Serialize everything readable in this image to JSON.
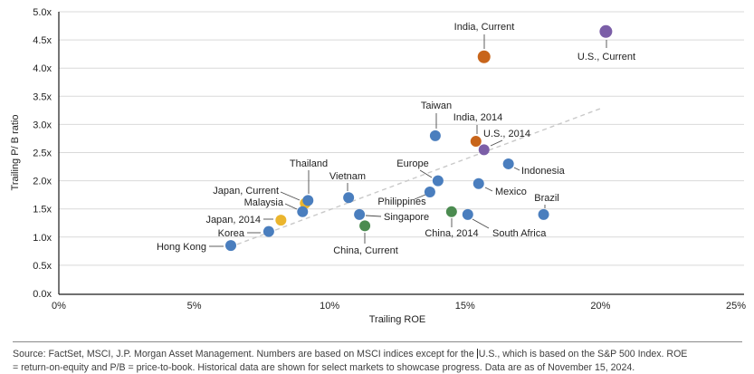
{
  "chart_data": {
    "type": "scatter",
    "title": "",
    "xlabel": "Trailing ROE",
    "ylabel": "Trailing P/ B ratio",
    "xlim": [
      0,
      25
    ],
    "ylim": [
      0,
      5
    ],
    "x_ticks": [
      {
        "label": "0%",
        "value": 0
      },
      {
        "label": "5%",
        "value": 5
      },
      {
        "label": "10%",
        "value": 10
      },
      {
        "label": "15%",
        "value": 15
      },
      {
        "label": "20%",
        "value": 20
      },
      {
        "label": "25%",
        "value": 25
      }
    ],
    "y_ticks": [
      {
        "label": "0.0x",
        "value": 0
      },
      {
        "label": "0.5x",
        "value": 0.5
      },
      {
        "label": "1.0x",
        "value": 1
      },
      {
        "label": "1.5x",
        "value": 1.5
      },
      {
        "label": "2.0x",
        "value": 2
      },
      {
        "label": "2.5x",
        "value": 2.5
      },
      {
        "label": "3.0x",
        "value": 3
      },
      {
        "label": "3.5x",
        "value": 3.5
      },
      {
        "label": "4.0x",
        "value": 4
      },
      {
        "label": "4.5x",
        "value": 4.5
      },
      {
        "label": "5.0x",
        "value": 5
      }
    ],
    "grid": true,
    "legend": "none",
    "colors": {
      "market": "#4A7EBE",
      "india": "#C8651B",
      "us": "#7B5EA7",
      "japan": "#EBB52D",
      "china": "#4B8B50",
      "gridline": "#D9D9D9",
      "spine": "#1a1a1a",
      "trendline": "#C9C9C9",
      "leader": "#4d4d4d",
      "text": "#1f1f1f"
    },
    "trendline": {
      "x1": 6.3,
      "y1": 0.82,
      "x2": 20.1,
      "y2": 3.3,
      "style": "dashed"
    },
    "points": [
      {
        "label": "Hong Kong",
        "series": "market",
        "roe": 6.35,
        "pb": 0.85,
        "r": 6,
        "anchor": "end",
        "lp": [
          228,
          276
        ],
        "leader": [
          231,
          272,
          247,
          272
        ]
      },
      {
        "label": "Korea",
        "series": "market",
        "roe": 7.75,
        "pb": 1.1,
        "r": 6,
        "anchor": "end",
        "lp": [
          270,
          261
        ],
        "leader": [
          273,
          257,
          288,
          257
        ]
      },
      {
        "label": "Japan, 2014",
        "series": "japan",
        "roe": 8.2,
        "pb": 1.3,
        "r": 6,
        "anchor": "end",
        "lp": [
          288,
          246
        ],
        "leader": [
          291,
          242,
          302,
          242
        ]
      },
      {
        "label": "Japan, Current",
        "series": "japan",
        "roe": 9.1,
        "pb": 1.6,
        "r": 6,
        "anchor": "end",
        "lp": [
          308,
          214
        ],
        "leader": [
          310,
          212,
          331,
          221
        ]
      },
      {
        "label": "Malaysia",
        "series": "market",
        "roe": 9.0,
        "pb": 1.45,
        "r": 6,
        "anchor": "end",
        "lp": [
          313,
          227
        ],
        "leader": [
          315,
          225,
          328,
          231
        ]
      },
      {
        "label": "Thailand",
        "series": "market",
        "roe": 9.2,
        "pb": 1.65,
        "r": 6,
        "anchor": "middle",
        "lp": [
          341,
          184
        ],
        "leader": [
          341,
          188,
          341,
          214
        ]
      },
      {
        "label": "Vietnam",
        "series": "market",
        "roe": 10.7,
        "pb": 1.7,
        "r": 6,
        "anchor": "middle",
        "lp": [
          384,
          198
        ],
        "leader": [
          384,
          202,
          384,
          211
        ]
      },
      {
        "label": "Singapore",
        "series": "market",
        "roe": 11.1,
        "pb": 1.4,
        "r": 6,
        "anchor": "start",
        "lp": [
          424,
          243
        ],
        "leader": [
          404,
          238,
          421,
          239
        ]
      },
      {
        "label": "China, Current",
        "series": "china",
        "roe": 11.3,
        "pb": 1.2,
        "r": 6,
        "anchor": "middle",
        "lp": [
          404,
          280
        ],
        "leader": [
          403,
          257,
          403,
          269
        ]
      },
      {
        "label": "Philippines",
        "series": "market",
        "roe": 13.7,
        "pb": 1.8,
        "r": 6,
        "anchor": "middle",
        "lp": [
          444,
          226
        ],
        "leader": [
          458,
          220,
          470,
          215
        ]
      },
      {
        "label": "Taiwan",
        "series": "market",
        "roe": 13.9,
        "pb": 2.8,
        "r": 6,
        "anchor": "middle",
        "lp": [
          482,
          120
        ],
        "leader": [
          482,
          125,
          482,
          142
        ]
      },
      {
        "label": "Europe",
        "series": "market",
        "roe": 14.0,
        "pb": 2.0,
        "r": 6,
        "anchor": "middle",
        "lp": [
          456,
          184
        ],
        "leader": [
          464,
          188,
          477,
          196
        ]
      },
      {
        "label": "China, 2014",
        "series": "china",
        "roe": 14.5,
        "pb": 1.45,
        "r": 6,
        "anchor": "middle",
        "lp": [
          499,
          261
        ],
        "leader": [
          499,
          241,
          499,
          251
        ]
      },
      {
        "label": "South Africa",
        "series": "market",
        "roe": 15.1,
        "pb": 1.4,
        "r": 6,
        "anchor": "start",
        "lp": [
          544,
          261
        ],
        "leader": [
          522,
          242,
          540,
          252
        ]
      },
      {
        "label": "India, 2014",
        "series": "india",
        "roe": 15.4,
        "pb": 2.7,
        "r": 6,
        "anchor": "middle",
        "lp": [
          528,
          133
        ],
        "leader": [
          527,
          138,
          527,
          148
        ]
      },
      {
        "label": "U.S., 2014",
        "series": "us",
        "roe": 15.7,
        "pb": 2.55,
        "r": 6,
        "anchor": "middle",
        "lp": [
          560,
          151
        ],
        "leader": [
          555,
          155,
          542,
          161
        ]
      },
      {
        "label": "Mexico",
        "series": "market",
        "roe": 15.5,
        "pb": 1.95,
        "r": 6,
        "anchor": "start",
        "lp": [
          547,
          215
        ],
        "leader": [
          536,
          207,
          544,
          211
        ]
      },
      {
        "label": "Indonesia",
        "series": "market",
        "roe": 16.6,
        "pb": 2.3,
        "r": 6,
        "anchor": "start",
        "lp": [
          576,
          192
        ],
        "leader": [
          568,
          185,
          574,
          188
        ]
      },
      {
        "label": "Brazil",
        "series": "market",
        "roe": 17.9,
        "pb": 1.4,
        "r": 6,
        "anchor": "middle",
        "lp": [
          604,
          222
        ],
        "leader": [
          602,
          226,
          602,
          230
        ]
      },
      {
        "label": "India, Current",
        "series": "india",
        "roe": 15.7,
        "pb": 4.2,
        "r": 7,
        "anchor": "middle",
        "lp": [
          535,
          33
        ],
        "leader": [
          535,
          38,
          535,
          54
        ]
      },
      {
        "label": "U.S., Current",
        "series": "us",
        "roe": 20.2,
        "pb": 4.65,
        "r": 7,
        "anchor": "middle",
        "lp": [
          670,
          66
        ],
        "leader": [
          670,
          44,
          670,
          53
        ]
      }
    ]
  },
  "footer": {
    "line1_part1": "Source: FactSet, MSCI, J.P. Morgan Asset Management. Numbers are based on MSCI indices except for the",
    "line1_part2": "U.S., which is based on the S&P 500 Index.  ROE",
    "line2": "= return-on-equity and P/B = price-to-book. Historical data are shown for select markets to showcase progress. Data are as of November 15, 2024."
  }
}
